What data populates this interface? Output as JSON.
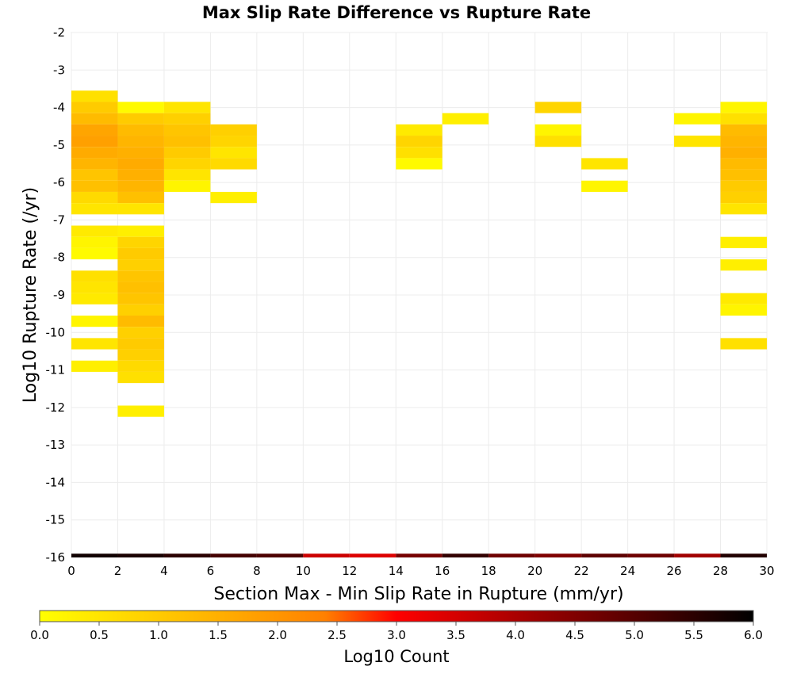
{
  "chart_data": {
    "type": "heatmap",
    "title": "Max Slip Rate Difference vs Rupture Rate",
    "xlabel": "Section Max - Min Slip Rate in Rupture (mm/yr)",
    "ylabel": "Log10 Rupture Rate (/yr)",
    "xlim": [
      0,
      30
    ],
    "ylim": [
      -16,
      -2
    ],
    "x_ticks": [
      "0",
      "2",
      "4",
      "6",
      "8",
      "10",
      "12",
      "14",
      "16",
      "18",
      "20",
      "22",
      "24",
      "26",
      "28",
      "30"
    ],
    "y_ticks": [
      "-2",
      "-3",
      "-4",
      "-5",
      "-6",
      "-7",
      "-8",
      "-9",
      "-10",
      "-11",
      "-12",
      "-13",
      "-14",
      "-15",
      "-16"
    ],
    "grid": true,
    "x_bin_width": 2,
    "y_bin_height": 0.3,
    "colorbar": {
      "label": "Log10 Count",
      "min": 0.0,
      "max": 6.0,
      "ticks": [
        "0.0",
        "0.5",
        "1.0",
        "1.5",
        "2.0",
        "2.5",
        "3.0",
        "3.5",
        "4.0",
        "4.5",
        "5.0",
        "5.5",
        "6.0"
      ],
      "stops": [
        "#ffff00",
        "#ffc000",
        "#ff8000",
        "#ff0000",
        "#800000",
        "#000000"
      ]
    },
    "cells": [
      {
        "x": 0,
        "y": -3.7,
        "v": 0.6
      },
      {
        "x": 0,
        "y": -4.0,
        "v": 1.0
      },
      {
        "x": 0,
        "y": -4.3,
        "v": 1.3
      },
      {
        "x": 0,
        "y": -4.6,
        "v": 1.7
      },
      {
        "x": 0,
        "y": -4.9,
        "v": 1.8
      },
      {
        "x": 0,
        "y": -5.2,
        "v": 1.6
      },
      {
        "x": 0,
        "y": -5.5,
        "v": 1.4
      },
      {
        "x": 0,
        "y": -5.8,
        "v": 1.1
      },
      {
        "x": 0,
        "y": -6.1,
        "v": 1.2
      },
      {
        "x": 0,
        "y": -6.4,
        "v": 0.7
      },
      {
        "x": 0,
        "y": -6.7,
        "v": 0.5
      },
      {
        "x": 0,
        "y": -7.3,
        "v": 0.4
      },
      {
        "x": 0,
        "y": -7.6,
        "v": 0.2
      },
      {
        "x": 0,
        "y": -7.9,
        "v": 0.1
      },
      {
        "x": 0,
        "y": -8.5,
        "v": 0.6
      },
      {
        "x": 0,
        "y": -8.8,
        "v": 0.5
      },
      {
        "x": 0,
        "y": -9.1,
        "v": 0.4
      },
      {
        "x": 0,
        "y": -9.7,
        "v": 0.2
      },
      {
        "x": 0,
        "y": -10.3,
        "v": 0.5
      },
      {
        "x": 0,
        "y": -10.9,
        "v": 0.3
      },
      {
        "x": 2,
        "y": -4.0,
        "v": 0.1
      },
      {
        "x": 2,
        "y": -4.3,
        "v": 1.0
      },
      {
        "x": 2,
        "y": -4.6,
        "v": 1.3
      },
      {
        "x": 2,
        "y": -4.9,
        "v": 1.4
      },
      {
        "x": 2,
        "y": -5.2,
        "v": 1.5
      },
      {
        "x": 2,
        "y": -5.5,
        "v": 1.6
      },
      {
        "x": 2,
        "y": -5.8,
        "v": 1.5
      },
      {
        "x": 2,
        "y": -6.1,
        "v": 1.4
      },
      {
        "x": 2,
        "y": -6.4,
        "v": 1.2
      },
      {
        "x": 2,
        "y": -6.7,
        "v": 0.5
      },
      {
        "x": 2,
        "y": -7.3,
        "v": 0.3
      },
      {
        "x": 2,
        "y": -7.6,
        "v": 0.8
      },
      {
        "x": 2,
        "y": -7.9,
        "v": 1.0
      },
      {
        "x": 2,
        "y": -8.2,
        "v": 0.9
      },
      {
        "x": 2,
        "y": -8.5,
        "v": 1.1
      },
      {
        "x": 2,
        "y": -8.8,
        "v": 1.2
      },
      {
        "x": 2,
        "y": -9.1,
        "v": 1.1
      },
      {
        "x": 2,
        "y": -9.4,
        "v": 0.9
      },
      {
        "x": 2,
        "y": -9.7,
        "v": 1.3
      },
      {
        "x": 2,
        "y": -10.0,
        "v": 0.9
      },
      {
        "x": 2,
        "y": -10.3,
        "v": 1.0
      },
      {
        "x": 2,
        "y": -10.6,
        "v": 0.9
      },
      {
        "x": 2,
        "y": -10.9,
        "v": 0.7
      },
      {
        "x": 2,
        "y": -11.2,
        "v": 0.6
      },
      {
        "x": 2,
        "y": -12.1,
        "v": 0.3
      },
      {
        "x": 4,
        "y": -4.0,
        "v": 0.5
      },
      {
        "x": 4,
        "y": -4.3,
        "v": 0.9
      },
      {
        "x": 4,
        "y": -4.6,
        "v": 1.1
      },
      {
        "x": 4,
        "y": -4.9,
        "v": 1.2
      },
      {
        "x": 4,
        "y": -5.2,
        "v": 1.0
      },
      {
        "x": 4,
        "y": -5.5,
        "v": 0.8
      },
      {
        "x": 4,
        "y": -5.8,
        "v": 0.5
      },
      {
        "x": 4,
        "y": -6.1,
        "v": 0.2
      },
      {
        "x": 6,
        "y": -4.6,
        "v": 0.9
      },
      {
        "x": 6,
        "y": -4.9,
        "v": 0.8
      },
      {
        "x": 6,
        "y": -5.2,
        "v": 0.5
      },
      {
        "x": 6,
        "y": -5.5,
        "v": 0.7
      },
      {
        "x": 6,
        "y": -6.4,
        "v": 0.3
      },
      {
        "x": 14,
        "y": -4.6,
        "v": 0.4
      },
      {
        "x": 14,
        "y": -4.9,
        "v": 0.8
      },
      {
        "x": 14,
        "y": -5.2,
        "v": 0.6
      },
      {
        "x": 14,
        "y": -5.5,
        "v": 0.1
      },
      {
        "x": 16,
        "y": -4.3,
        "v": 0.3
      },
      {
        "x": 20,
        "y": -4.0,
        "v": 0.8
      },
      {
        "x": 20,
        "y": -4.6,
        "v": 0.2
      },
      {
        "x": 20,
        "y": -4.9,
        "v": 0.6
      },
      {
        "x": 22,
        "y": -5.5,
        "v": 0.5
      },
      {
        "x": 22,
        "y": -6.1,
        "v": 0.2
      },
      {
        "x": 26,
        "y": -4.3,
        "v": 0.2
      },
      {
        "x": 26,
        "y": -4.9,
        "v": 0.5
      },
      {
        "x": 28,
        "y": -4.0,
        "v": 0.2
      },
      {
        "x": 28,
        "y": -4.3,
        "v": 0.6
      },
      {
        "x": 28,
        "y": -4.6,
        "v": 1.3
      },
      {
        "x": 28,
        "y": -4.9,
        "v": 1.4
      },
      {
        "x": 28,
        "y": -5.2,
        "v": 1.5
      },
      {
        "x": 28,
        "y": -5.5,
        "v": 1.3
      },
      {
        "x": 28,
        "y": -5.8,
        "v": 1.2
      },
      {
        "x": 28,
        "y": -6.1,
        "v": 1.0
      },
      {
        "x": 28,
        "y": -6.4,
        "v": 0.9
      },
      {
        "x": 28,
        "y": -6.7,
        "v": 0.5
      },
      {
        "x": 28,
        "y": -7.6,
        "v": 0.3
      },
      {
        "x": 28,
        "y": -8.2,
        "v": 0.3
      },
      {
        "x": 28,
        "y": -9.1,
        "v": 0.4
      },
      {
        "x": 28,
        "y": -9.4,
        "v": 0.2
      },
      {
        "x": 28,
        "y": -10.3,
        "v": 0.6
      }
    ],
    "bottom_row": {
      "y": -16,
      "values": [
        5.8,
        5.7,
        5.5,
        5.2,
        5.1,
        3.6,
        3.4,
        4.6,
        5.4,
        4.7,
        4.5,
        4.9,
        4.7,
        4.1,
        5.6
      ]
    }
  }
}
